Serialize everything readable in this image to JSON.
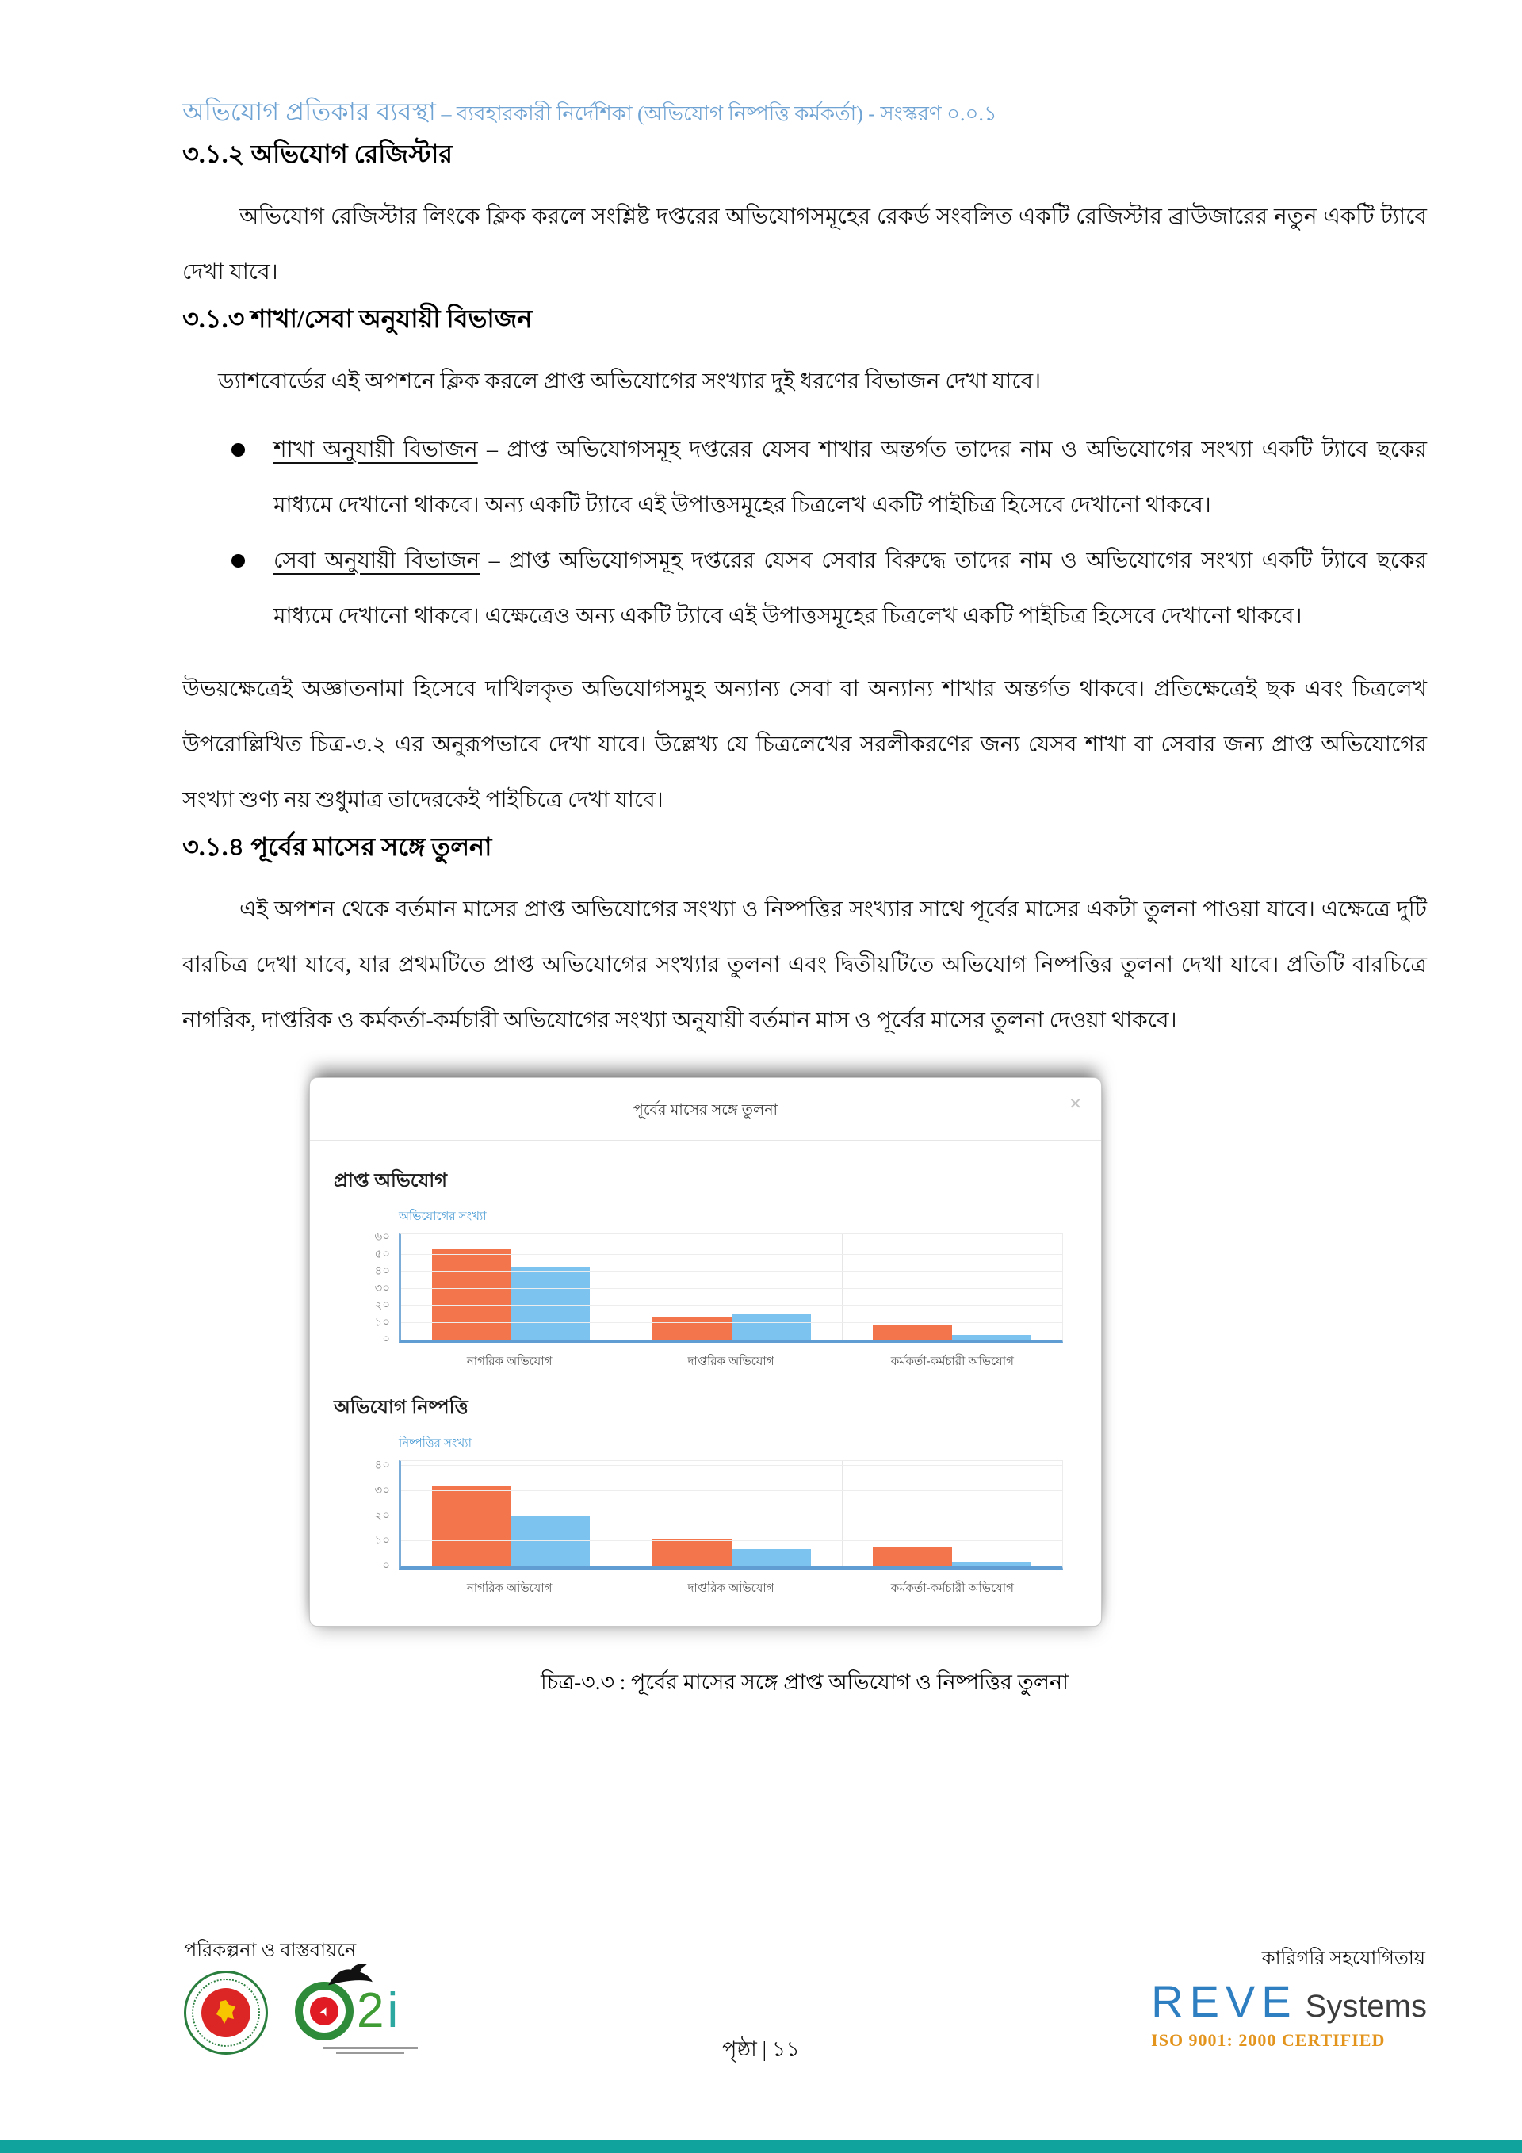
{
  "header": {
    "title_main": "অভিযোগ প্রতিকার ব্যবস্থা",
    "title_sub": " – ব্যবহারকারী নির্দেশিকা (অভিযোগ নিষ্পত্তি কর্মকর্তা) - সংস্করণ ০.০.১"
  },
  "sections": {
    "s312": {
      "heading": "৩.১.২ অভিযোগ রেজিস্টার",
      "para": "অভিযোগ রেজিস্টার লিংকে ক্লিক করলে সংশ্লিষ্ট দপ্তরের অভিযোগসমূহের রেকর্ড সংবলিত একটি রেজিস্টার ব্রাউজারের নতুন একটি ট্যাবে দেখা যাবে।"
    },
    "s313": {
      "heading": "৩.১.৩ শাখা/সেবা অনুযায়ী বিভাজন",
      "para": "ড্যাশবোর্ডের এই অপশনে ক্লিক করলে প্রাপ্ত অভিযোগের সংখ্যার দুই ধরণের বিভাজন দেখা যাবে।",
      "bullets": [
        {
          "lead": "শাখা অনুযায়ী বিভাজন",
          "rest": " – প্রাপ্ত অভিযোগসমূহ দপ্তরের যেসব শাখার অন্তর্গত তাদের নাম ও অভিযোগের সংখ্যা একটি ট্যাবে ছকের মাধ্যমে দেখানো থাকবে। অন্য একটি ট্যাবে এই উপাত্তসমূহের চিত্রলেখ একটি পাইচিত্র হিসেবে দেখানো থাকবে।"
        },
        {
          "lead": "সেবা অনুযায়ী বিভাজন",
          "rest": " – প্রাপ্ত অভিযোগসমূহ দপ্তরের যেসব সেবার বিরুদ্ধে তাদের নাম ও অভিযোগের সংখ্যা একটি ট্যাবে ছকের মাধ্যমে দেখানো থাকবে। এক্ষেত্রেও অন্য একটি ট্যাবে এই উপাত্তসমূহের চিত্রলেখ একটি পাইচিত্র হিসেবে দেখানো থাকবে।"
        }
      ],
      "para2": "উভয়ক্ষেত্রেই অজ্ঞাতনামা হিসেবে দাখিলকৃত অভিযোগসমুহ অন্যান্য সেবা বা অন্যান্য শাখার অন্তর্গত থাকবে। প্রতিক্ষেত্রেই ছক এবং চিত্রলেখ উপরোল্লিখিত চিত্র-৩.২ এর অনুরূপভাবে দেখা যাবে। উল্লেখ্য যে চিত্রলেখের সরলীকরণের জন্য যেসব শাখা বা সেবার জন্য প্রাপ্ত অভিযোগের সংখ্যা শুণ্য নয় শুধুমাত্র তাদেরকেই পাইচিত্রে দেখা যাবে।"
    },
    "s314": {
      "heading": "৩.১.৪ পূর্বের মাসের সঙ্গে তুলনা",
      "para": "এই অপশন থেকে বর্তমান মাসের প্রাপ্ত অভিযোগের সংখ্যা ও নিষ্পত্তির সংখ্যার সাথে পূর্বের মাসের একটা তুলনা পাওয়া যাবে। এক্ষেত্রে দুটি বারচিত্র দেখা যাবে, যার প্রথমটিতে প্রাপ্ত অভিযোগের সংখ্যার তুলনা এবং দ্বিতীয়টিতে অভিযোগ নিষ্পত্তির তুলনা দেখা যাবে। প্রতিটি বারচিত্রে নাগরিক, দাপ্তরিক ও কর্মকর্তা-কর্মচারী অভিযোগের সংখ্যা অনুযায়ী বর্তমান মাস ও পূর্বের মাসের তুলনা দেওয়া থাকবে।"
    }
  },
  "figure": {
    "dialog_title": "পূর্বের মাসের সঙ্গে তুলনা",
    "close_glyph": "✕",
    "caption": "চিত্র-৩.৩ : পূর্বের মাসের সঙ্গে প্রাপ্ত অভিযোগ ও নিষ্পত্তির তুলনা"
  },
  "chart_data": [
    {
      "type": "bar",
      "title": "প্রাপ্ত অভিযোগ",
      "ylabel": "অভিযোগের সংখ্যা",
      "xlabel": "",
      "categories": [
        "নাগরিক অভিযোগ",
        "দাপ্তরিক অভিযোগ",
        "কর্মকর্তা-কর্মচারী অভিযোগ"
      ],
      "series": [
        {
          "color": "#f3754b",
          "values": [
            53,
            13,
            9
          ]
        },
        {
          "color": "#7cc3f0",
          "values": [
            43,
            15,
            3
          ]
        }
      ],
      "ylim": [
        0,
        62
      ],
      "ytick_values": [
        0,
        10,
        20,
        30,
        40,
        50,
        60
      ],
      "ytick_labels": [
        "০",
        "১০",
        "২০",
        "৩০",
        "৪০",
        "৫০",
        "৬০"
      ],
      "grid": true,
      "legend": false
    },
    {
      "type": "bar",
      "title": "অভিযোগ নিষ্পত্তি",
      "ylabel": "নিষ্পত্তির সংখ্যা",
      "xlabel": "",
      "categories": [
        "নাগরিক অভিযোগ",
        "দাপ্তরিক অভিযোগ",
        "কর্মকর্তা-কর্মচারী অভিযোগ"
      ],
      "series": [
        {
          "color": "#f3754b",
          "values": [
            32,
            11,
            8
          ]
        },
        {
          "color": "#7cc3f0",
          "values": [
            20,
            7,
            2
          ]
        }
      ],
      "ylim": [
        0,
        42
      ],
      "ytick_values": [
        0,
        10,
        20,
        30,
        40
      ],
      "ytick_labels": [
        "০",
        "১০",
        "২০",
        "৩০",
        "৪০"
      ],
      "grid": true,
      "legend": false
    }
  ],
  "footer": {
    "left_label": "পরিকল্পনা ও বাস্তবায়নে",
    "right_label": "কারিগরি সহযোগিতায়",
    "page_label": "পৃষ্ঠা | ১১",
    "reve_brand": "REVE",
    "reve_sub": "Systems",
    "reve_iso": "ISO 9001: 2000  CERTIFIED",
    "a2i_two": "2",
    "a2i_i": "i"
  },
  "colors": {
    "header_blue": "#6fa3d3",
    "bar_orange": "#f3754b",
    "bar_blue": "#7cc3f0",
    "axis_blue": "#5f9dd3",
    "accent_teal_bar": "#10a39e",
    "reve_blue": "#2e7fc2",
    "iso_orange": "#e3941d"
  }
}
